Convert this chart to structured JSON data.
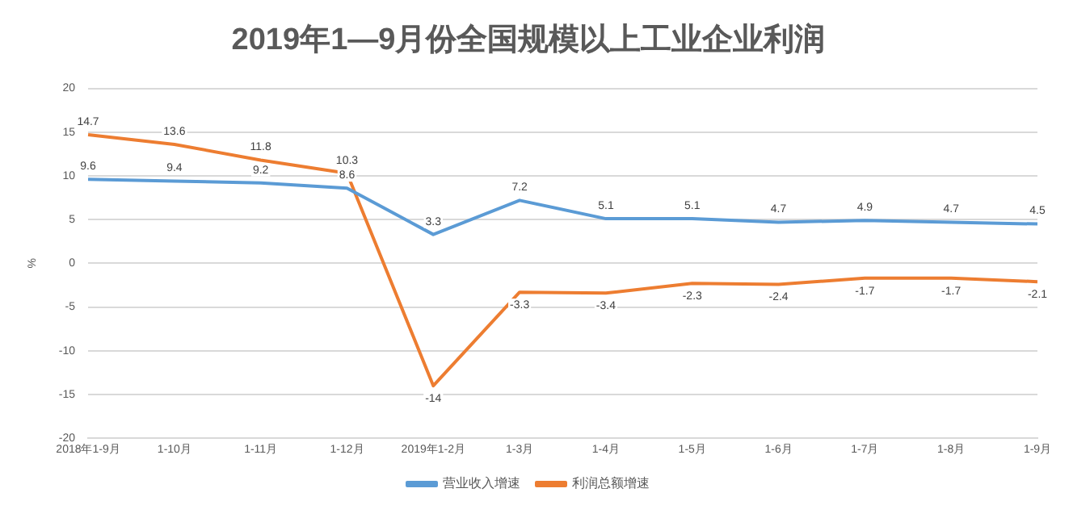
{
  "chart_data": {
    "type": "line",
    "title": "2019年1—9月份全国规模以上工业企业利润",
    "ylabel": "%",
    "categories": [
      "2018年1-9月",
      "1-10月",
      "1-11月",
      "1-12月",
      "2019年1-2月",
      "1-3月",
      "1-4月",
      "1-5月",
      "1-6月",
      "1-7月",
      "1-8月",
      "1-9月"
    ],
    "series": [
      {
        "name": "营业收入增速",
        "color": "#5b9bd5",
        "values": [
          9.6,
          9.4,
          9.2,
          8.6,
          3.3,
          7.2,
          5.1,
          5.1,
          4.7,
          4.9,
          4.7,
          4.5
        ]
      },
      {
        "name": "利润总额增速",
        "color": "#ed7d31",
        "values": [
          14.7,
          13.6,
          11.8,
          10.3,
          -14,
          -3.3,
          -3.4,
          -2.3,
          -2.4,
          -1.7,
          -1.7,
          -2.1
        ]
      }
    ],
    "ylim": [
      -20,
      20
    ],
    "yticks": [
      -20,
      -15,
      -10,
      -5,
      0,
      5,
      10,
      15,
      20
    ],
    "grid": "y",
    "legend": "bottom",
    "data_labels": true,
    "marker": "none",
    "line_style": "solid"
  }
}
